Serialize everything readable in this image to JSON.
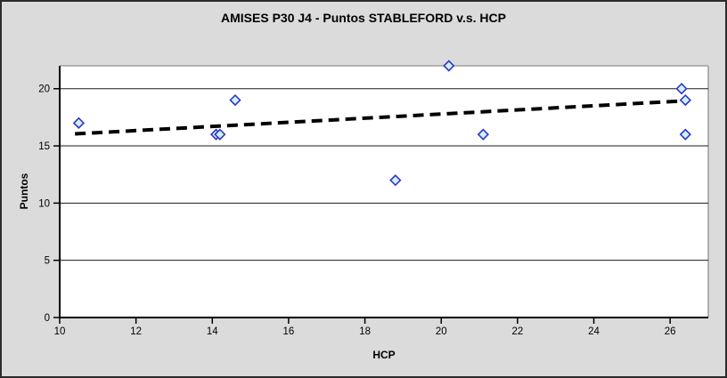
{
  "chart_data": {
    "type": "scatter",
    "title": "AMISES P30 J4 - Puntos STABLEFORD v.s. HCP",
    "xlabel": "HCP",
    "ylabel": "Puntos",
    "xlim": [
      10,
      27
    ],
    "ylim": [
      0,
      22
    ],
    "x_ticks": [
      10,
      12,
      14,
      16,
      18,
      20,
      22,
      24,
      26
    ],
    "y_ticks": [
      0,
      5,
      10,
      15,
      20
    ],
    "grid": "horizontal-only",
    "legend": "none",
    "series": [
      {
        "name": "Puntos STABLEFORD",
        "marker": "diamond",
        "points": [
          [
            10.5,
            17
          ],
          [
            14.1,
            16
          ],
          [
            14.2,
            16
          ],
          [
            14.6,
            19
          ],
          [
            18.8,
            12
          ],
          [
            20.2,
            22
          ],
          [
            21.1,
            16
          ],
          [
            26.3,
            20
          ],
          [
            26.4,
            19
          ],
          [
            26.4,
            16
          ]
        ]
      }
    ],
    "trendline": {
      "type": "linear",
      "style": "dashed",
      "x1": 10.4,
      "y1": 16.05,
      "x2": 26.45,
      "y2": 18.95
    },
    "colors": {
      "background": "#dbdbdb",
      "plot_background": "#ffffff",
      "gridline": "#1a1a1a",
      "axis": "#000000",
      "plot_border": "#909090",
      "marker_fill": "#ccf2ff",
      "marker_border": "#3434c2",
      "trend": "#000000",
      "text": "#000000"
    }
  }
}
